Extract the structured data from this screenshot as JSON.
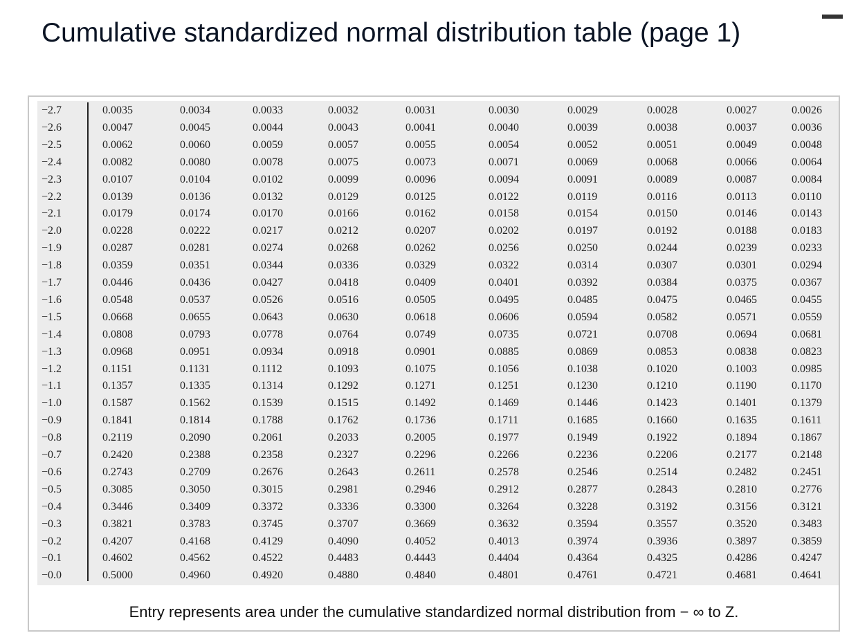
{
  "title": "Cumulative standardized normal distribution table (page 1)",
  "table": {
    "rows": [
      {
        "z": "−2.7",
        "values": [
          "0.0035",
          "0.0034",
          "0.0033",
          "0.0032",
          "0.0031",
          "0.0030",
          "0.0029",
          "0.0028",
          "0.0027",
          "0.0026"
        ]
      },
      {
        "z": "−2.6",
        "values": [
          "0.0047",
          "0.0045",
          "0.0044",
          "0.0043",
          "0.0041",
          "0.0040",
          "0.0039",
          "0.0038",
          "0.0037",
          "0.0036"
        ]
      },
      {
        "z": "−2.5",
        "values": [
          "0.0062",
          "0.0060",
          "0.0059",
          "0.0057",
          "0.0055",
          "0.0054",
          "0.0052",
          "0.0051",
          "0.0049",
          "0.0048"
        ]
      },
      {
        "z": "−2.4",
        "values": [
          "0.0082",
          "0.0080",
          "0.0078",
          "0.0075",
          "0.0073",
          "0.0071",
          "0.0069",
          "0.0068",
          "0.0066",
          "0.0064"
        ]
      },
      {
        "z": "−2.3",
        "values": [
          "0.0107",
          "0.0104",
          "0.0102",
          "0.0099",
          "0.0096",
          "0.0094",
          "0.0091",
          "0.0089",
          "0.0087",
          "0.0084"
        ]
      },
      {
        "z": "−2.2",
        "values": [
          "0.0139",
          "0.0136",
          "0.0132",
          "0.0129",
          "0.0125",
          "0.0122",
          "0.0119",
          "0.0116",
          "0.0113",
          "0.0110"
        ]
      },
      {
        "z": "−2.1",
        "values": [
          "0.0179",
          "0.0174",
          "0.0170",
          "0.0166",
          "0.0162",
          "0.0158",
          "0.0154",
          "0.0150",
          "0.0146",
          "0.0143"
        ]
      },
      {
        "z": "−2.0",
        "values": [
          "0.0228",
          "0.0222",
          "0.0217",
          "0.0212",
          "0.0207",
          "0.0202",
          "0.0197",
          "0.0192",
          "0.0188",
          "0.0183"
        ]
      },
      {
        "z": "−1.9",
        "values": [
          "0.0287",
          "0.0281",
          "0.0274",
          "0.0268",
          "0.0262",
          "0.0256",
          "0.0250",
          "0.0244",
          "0.0239",
          "0.0233"
        ]
      },
      {
        "z": "−1.8",
        "values": [
          "0.0359",
          "0.0351",
          "0.0344",
          "0.0336",
          "0.0329",
          "0.0322",
          "0.0314",
          "0.0307",
          "0.0301",
          "0.0294"
        ]
      },
      {
        "z": "−1.7",
        "values": [
          "0.0446",
          "0.0436",
          "0.0427",
          "0.0418",
          "0.0409",
          "0.0401",
          "0.0392",
          "0.0384",
          "0.0375",
          "0.0367"
        ]
      },
      {
        "z": "−1.6",
        "values": [
          "0.0548",
          "0.0537",
          "0.0526",
          "0.0516",
          "0.0505",
          "0.0495",
          "0.0485",
          "0.0475",
          "0.0465",
          "0.0455"
        ]
      },
      {
        "z": "−1.5",
        "values": [
          "0.0668",
          "0.0655",
          "0.0643",
          "0.0630",
          "0.0618",
          "0.0606",
          "0.0594",
          "0.0582",
          "0.0571",
          "0.0559"
        ]
      },
      {
        "z": "−1.4",
        "values": [
          "0.0808",
          "0.0793",
          "0.0778",
          "0.0764",
          "0.0749",
          "0.0735",
          "0.0721",
          "0.0708",
          "0.0694",
          "0.0681"
        ]
      },
      {
        "z": "−1.3",
        "values": [
          "0.0968",
          "0.0951",
          "0.0934",
          "0.0918",
          "0.0901",
          "0.0885",
          "0.0869",
          "0.0853",
          "0.0838",
          "0.0823"
        ]
      },
      {
        "z": "−1.2",
        "values": [
          "0.1151",
          "0.1131",
          "0.1112",
          "0.1093",
          "0.1075",
          "0.1056",
          "0.1038",
          "0.1020",
          "0.1003",
          "0.0985"
        ]
      },
      {
        "z": "−1.1",
        "values": [
          "0.1357",
          "0.1335",
          "0.1314",
          "0.1292",
          "0.1271",
          "0.1251",
          "0.1230",
          "0.1210",
          "0.1190",
          "0.1170"
        ]
      },
      {
        "z": "−1.0",
        "values": [
          "0.1587",
          "0.1562",
          "0.1539",
          "0.1515",
          "0.1492",
          "0.1469",
          "0.1446",
          "0.1423",
          "0.1401",
          "0.1379"
        ]
      },
      {
        "z": "−0.9",
        "values": [
          "0.1841",
          "0.1814",
          "0.1788",
          "0.1762",
          "0.1736",
          "0.1711",
          "0.1685",
          "0.1660",
          "0.1635",
          "0.1611"
        ]
      },
      {
        "z": "−0.8",
        "values": [
          "0.2119",
          "0.2090",
          "0.2061",
          "0.2033",
          "0.2005",
          "0.1977",
          "0.1949",
          "0.1922",
          "0.1894",
          "0.1867"
        ]
      },
      {
        "z": "−0.7",
        "values": [
          "0.2420",
          "0.2388",
          "0.2358",
          "0.2327",
          "0.2296",
          "0.2266",
          "0.2236",
          "0.2206",
          "0.2177",
          "0.2148"
        ]
      },
      {
        "z": "−0.6",
        "values": [
          "0.2743",
          "0.2709",
          "0.2676",
          "0.2643",
          "0.2611",
          "0.2578",
          "0.2546",
          "0.2514",
          "0.2482",
          "0.2451"
        ]
      },
      {
        "z": "−0.5",
        "values": [
          "0.3085",
          "0.3050",
          "0.3015",
          "0.2981",
          "0.2946",
          "0.2912",
          "0.2877",
          "0.2843",
          "0.2810",
          "0.2776"
        ]
      },
      {
        "z": "−0.4",
        "values": [
          "0.3446",
          "0.3409",
          "0.3372",
          "0.3336",
          "0.3300",
          "0.3264",
          "0.3228",
          "0.3192",
          "0.3156",
          "0.3121"
        ]
      },
      {
        "z": "−0.3",
        "values": [
          "0.3821",
          "0.3783",
          "0.3745",
          "0.3707",
          "0.3669",
          "0.3632",
          "0.3594",
          "0.3557",
          "0.3520",
          "0.3483"
        ]
      },
      {
        "z": "−0.2",
        "values": [
          "0.4207",
          "0.4168",
          "0.4129",
          "0.4090",
          "0.4052",
          "0.4013",
          "0.3974",
          "0.3936",
          "0.3897",
          "0.3859"
        ]
      },
      {
        "z": "−0.1",
        "values": [
          "0.4602",
          "0.4562",
          "0.4522",
          "0.4483",
          "0.4443",
          "0.4404",
          "0.4364",
          "0.4325",
          "0.4286",
          "0.4247"
        ]
      },
      {
        "z": "−0.0",
        "values": [
          "0.5000",
          "0.4960",
          "0.4920",
          "0.4880",
          "0.4840",
          "0.4801",
          "0.4761",
          "0.4721",
          "0.4681",
          "0.4641"
        ]
      }
    ]
  },
  "footnote": "Entry represents area under the cumulative standardized normal distribution from − ∞ to Z."
}
